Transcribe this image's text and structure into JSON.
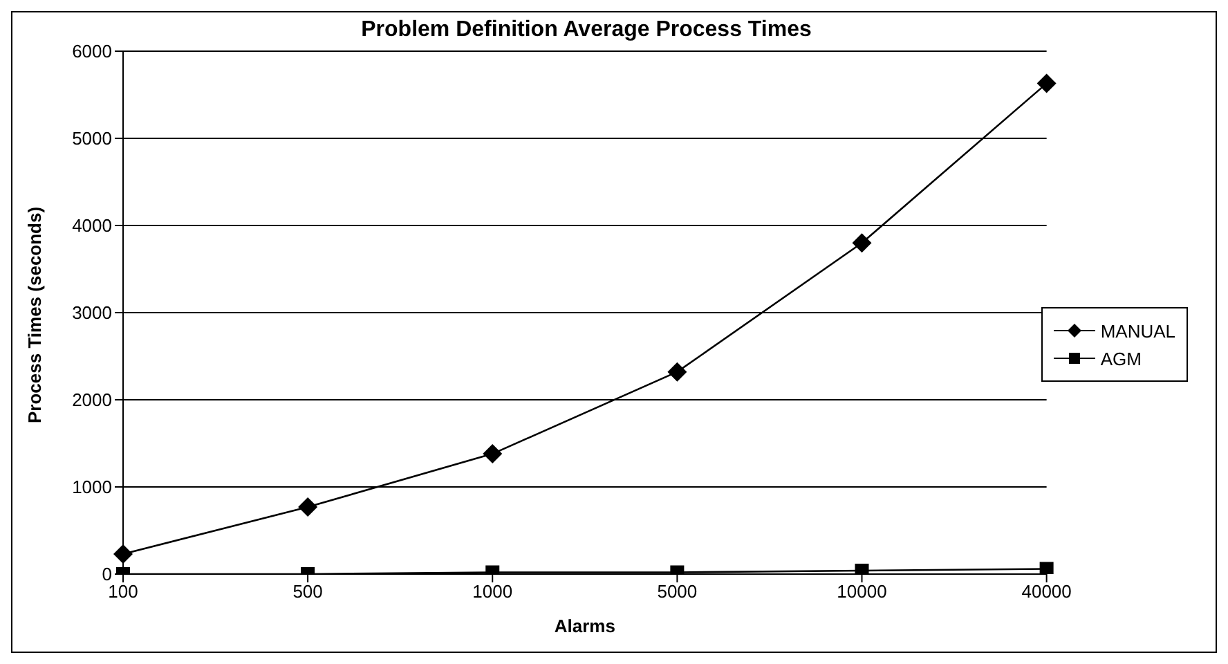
{
  "chart_data": {
    "type": "line",
    "title": "Problem Definition Average Process Times",
    "xlabel": "Alarms",
    "ylabel": "Process Times (seconds)",
    "categories": [
      "100",
      "500",
      "1000",
      "5000",
      "10000",
      "40000"
    ],
    "series": [
      {
        "name": "MANUAL",
        "color": "#000000",
        "marker": "diamond",
        "values": [
          230,
          770,
          1380,
          2320,
          3800,
          5630
        ]
      },
      {
        "name": "AGM",
        "color": "#000000",
        "marker": "square",
        "values": [
          0,
          0,
          20,
          20,
          40,
          60
        ]
      }
    ],
    "ylim": [
      0,
      6000
    ],
    "yticks": [
      0,
      1000,
      2000,
      3000,
      4000,
      5000,
      6000
    ],
    "grid": "y",
    "legend": "right"
  }
}
